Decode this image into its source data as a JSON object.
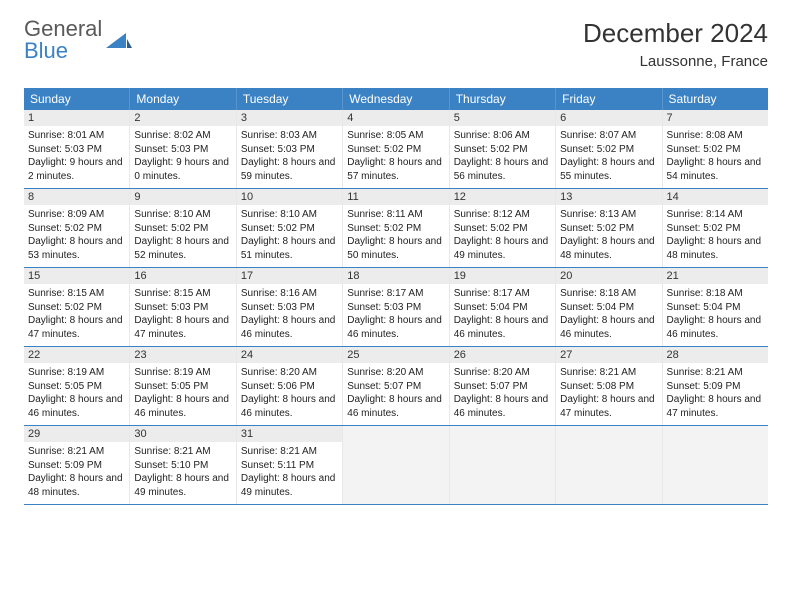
{
  "brand": {
    "name_part1": "General",
    "name_part2": "Blue",
    "color_gray": "#5a5a5a",
    "color_blue": "#3b82c4"
  },
  "header": {
    "month_title": "December 2024",
    "location": "Laussonne, France"
  },
  "colors": {
    "header_bg": "#3b82c4",
    "header_text": "#ffffff",
    "daynum_bg": "#ececec",
    "row_border": "#3b82c4",
    "cell_border": "#e8e8e8",
    "empty_bg": "#f3f3f3",
    "page_bg": "#ffffff",
    "body_text": "#222222"
  },
  "day_names": [
    "Sunday",
    "Monday",
    "Tuesday",
    "Wednesday",
    "Thursday",
    "Friday",
    "Saturday"
  ],
  "calendar": {
    "type": "table",
    "weeks": [
      [
        {
          "n": "1",
          "sunrise": "8:01 AM",
          "sunset": "5:03 PM",
          "daylight": "9 hours and 2 minutes."
        },
        {
          "n": "2",
          "sunrise": "8:02 AM",
          "sunset": "5:03 PM",
          "daylight": "9 hours and 0 minutes."
        },
        {
          "n": "3",
          "sunrise": "8:03 AM",
          "sunset": "5:03 PM",
          "daylight": "8 hours and 59 minutes."
        },
        {
          "n": "4",
          "sunrise": "8:05 AM",
          "sunset": "5:02 PM",
          "daylight": "8 hours and 57 minutes."
        },
        {
          "n": "5",
          "sunrise": "8:06 AM",
          "sunset": "5:02 PM",
          "daylight": "8 hours and 56 minutes."
        },
        {
          "n": "6",
          "sunrise": "8:07 AM",
          "sunset": "5:02 PM",
          "daylight": "8 hours and 55 minutes."
        },
        {
          "n": "7",
          "sunrise": "8:08 AM",
          "sunset": "5:02 PM",
          "daylight": "8 hours and 54 minutes."
        }
      ],
      [
        {
          "n": "8",
          "sunrise": "8:09 AM",
          "sunset": "5:02 PM",
          "daylight": "8 hours and 53 minutes."
        },
        {
          "n": "9",
          "sunrise": "8:10 AM",
          "sunset": "5:02 PM",
          "daylight": "8 hours and 52 minutes."
        },
        {
          "n": "10",
          "sunrise": "8:10 AM",
          "sunset": "5:02 PM",
          "daylight": "8 hours and 51 minutes."
        },
        {
          "n": "11",
          "sunrise": "8:11 AM",
          "sunset": "5:02 PM",
          "daylight": "8 hours and 50 minutes."
        },
        {
          "n": "12",
          "sunrise": "8:12 AM",
          "sunset": "5:02 PM",
          "daylight": "8 hours and 49 minutes."
        },
        {
          "n": "13",
          "sunrise": "8:13 AM",
          "sunset": "5:02 PM",
          "daylight": "8 hours and 48 minutes."
        },
        {
          "n": "14",
          "sunrise": "8:14 AM",
          "sunset": "5:02 PM",
          "daylight": "8 hours and 48 minutes."
        }
      ],
      [
        {
          "n": "15",
          "sunrise": "8:15 AM",
          "sunset": "5:02 PM",
          "daylight": "8 hours and 47 minutes."
        },
        {
          "n": "16",
          "sunrise": "8:15 AM",
          "sunset": "5:03 PM",
          "daylight": "8 hours and 47 minutes."
        },
        {
          "n": "17",
          "sunrise": "8:16 AM",
          "sunset": "5:03 PM",
          "daylight": "8 hours and 46 minutes."
        },
        {
          "n": "18",
          "sunrise": "8:17 AM",
          "sunset": "5:03 PM",
          "daylight": "8 hours and 46 minutes."
        },
        {
          "n": "19",
          "sunrise": "8:17 AM",
          "sunset": "5:04 PM",
          "daylight": "8 hours and 46 minutes."
        },
        {
          "n": "20",
          "sunrise": "8:18 AM",
          "sunset": "5:04 PM",
          "daylight": "8 hours and 46 minutes."
        },
        {
          "n": "21",
          "sunrise": "8:18 AM",
          "sunset": "5:04 PM",
          "daylight": "8 hours and 46 minutes."
        }
      ],
      [
        {
          "n": "22",
          "sunrise": "8:19 AM",
          "sunset": "5:05 PM",
          "daylight": "8 hours and 46 minutes."
        },
        {
          "n": "23",
          "sunrise": "8:19 AM",
          "sunset": "5:05 PM",
          "daylight": "8 hours and 46 minutes."
        },
        {
          "n": "24",
          "sunrise": "8:20 AM",
          "sunset": "5:06 PM",
          "daylight": "8 hours and 46 minutes."
        },
        {
          "n": "25",
          "sunrise": "8:20 AM",
          "sunset": "5:07 PM",
          "daylight": "8 hours and 46 minutes."
        },
        {
          "n": "26",
          "sunrise": "8:20 AM",
          "sunset": "5:07 PM",
          "daylight": "8 hours and 46 minutes."
        },
        {
          "n": "27",
          "sunrise": "8:21 AM",
          "sunset": "5:08 PM",
          "daylight": "8 hours and 47 minutes."
        },
        {
          "n": "28",
          "sunrise": "8:21 AM",
          "sunset": "5:09 PM",
          "daylight": "8 hours and 47 minutes."
        }
      ],
      [
        {
          "n": "29",
          "sunrise": "8:21 AM",
          "sunset": "5:09 PM",
          "daylight": "8 hours and 48 minutes."
        },
        {
          "n": "30",
          "sunrise": "8:21 AM",
          "sunset": "5:10 PM",
          "daylight": "8 hours and 49 minutes."
        },
        {
          "n": "31",
          "sunrise": "8:21 AM",
          "sunset": "5:11 PM",
          "daylight": "8 hours and 49 minutes."
        },
        {
          "empty": true
        },
        {
          "empty": true
        },
        {
          "empty": true
        },
        {
          "empty": true
        }
      ]
    ]
  },
  "labels": {
    "sunrise_prefix": "Sunrise: ",
    "sunset_prefix": "Sunset: ",
    "daylight_prefix": "Daylight: "
  }
}
